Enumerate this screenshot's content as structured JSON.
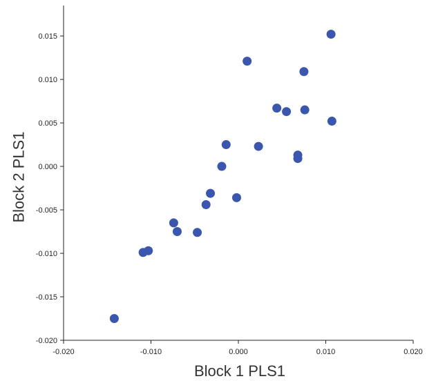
{
  "chart_data": {
    "type": "scatter",
    "title": "",
    "xlabel": "Block 1 PLS1",
    "ylabel": "Block 2 PLS1",
    "xlim": [
      -0.02,
      0.02
    ],
    "ylim": [
      -0.02,
      0.0185
    ],
    "x_ticks": [
      -0.02,
      -0.01,
      0.0,
      0.01,
      0.02
    ],
    "x_tick_labels": [
      "-0.020",
      "-0.010",
      "0.000",
      "0.010",
      "0.020"
    ],
    "y_ticks": [
      -0.02,
      -0.015,
      -0.01,
      -0.005,
      0.0,
      0.005,
      0.01,
      0.015
    ],
    "y_tick_labels": [
      "-0.020",
      "-0.015",
      "-0.010",
      "-0.005",
      "0.000",
      "0.005",
      "0.010",
      "0.015"
    ],
    "grid": false,
    "legend": "none",
    "marker_color": "#3a56ad",
    "points": [
      {
        "x": -0.0142,
        "y": -0.0175
      },
      {
        "x": -0.0109,
        "y": -0.0099
      },
      {
        "x": -0.0103,
        "y": -0.0097
      },
      {
        "x": -0.0074,
        "y": -0.0065
      },
      {
        "x": -0.007,
        "y": -0.0075
      },
      {
        "x": -0.0047,
        "y": -0.0076
      },
      {
        "x": -0.0037,
        "y": -0.0044
      },
      {
        "x": -0.0032,
        "y": -0.0031
      },
      {
        "x": -0.0002,
        "y": -0.0036
      },
      {
        "x": -0.0019,
        "y": 0.0
      },
      {
        "x": -0.0014,
        "y": 0.0025
      },
      {
        "x": 0.001,
        "y": 0.0121
      },
      {
        "x": 0.0023,
        "y": 0.0023
      },
      {
        "x": 0.0044,
        "y": 0.0067
      },
      {
        "x": 0.0055,
        "y": 0.0063
      },
      {
        "x": 0.0068,
        "y": 0.0013
      },
      {
        "x": 0.0068,
        "y": 0.0009
      },
      {
        "x": 0.0075,
        "y": 0.0109
      },
      {
        "x": 0.0076,
        "y": 0.0065
      },
      {
        "x": 0.0106,
        "y": 0.0152
      },
      {
        "x": 0.0107,
        "y": 0.0052
      }
    ]
  }
}
